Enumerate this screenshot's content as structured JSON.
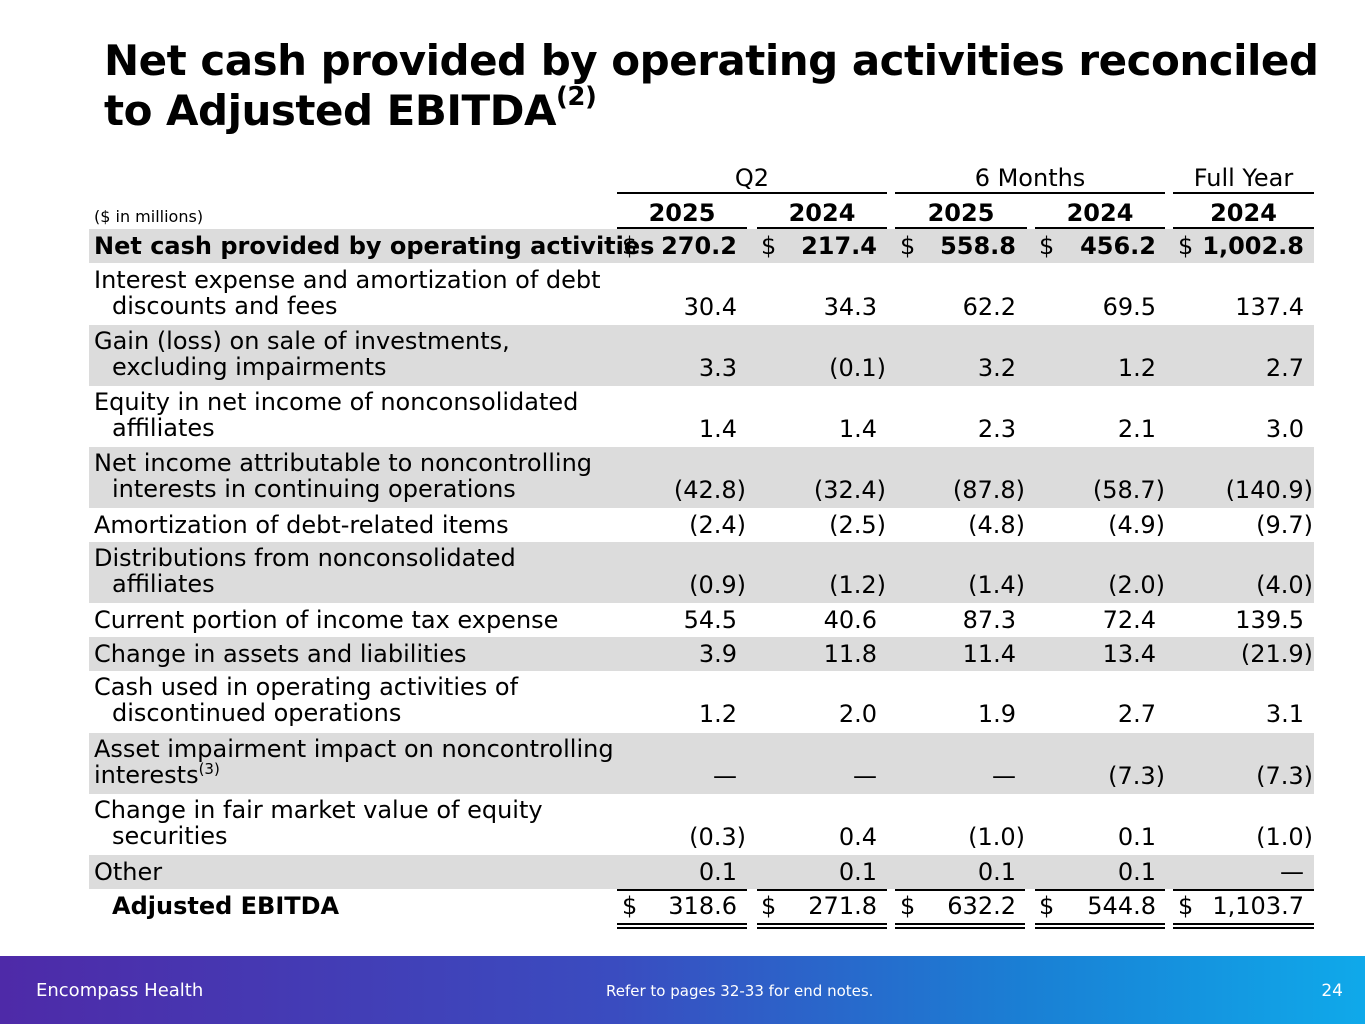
{
  "title": {
    "line1": "Net cash provided by operating activities reconciled",
    "line2": "to Adjusted EBITDA",
    "sup": "(2)"
  },
  "table": {
    "units": "($ in millions)",
    "groups": [
      "Q2",
      "6 Months",
      "Full Year"
    ],
    "years": [
      "2025",
      "2024",
      "2025",
      "2024",
      "2024"
    ],
    "currency_symbol": "$",
    "rows": [
      {
        "l1": "Net cash provided by operating activities",
        "l2": "",
        "values": [
          "270.2",
          "217.4",
          "558.8",
          "456.2",
          "1,002.8"
        ]
      },
      {
        "l1": "Interest expense and amortization of debt",
        "l2": "discounts and fees",
        "values": [
          "30.4",
          "34.3",
          "62.2",
          "69.5",
          "137.4"
        ]
      },
      {
        "l1": "Gain (loss) on sale of investments,",
        "l2": "excluding impairments",
        "values": [
          "3.3",
          "(0.1)",
          "3.2",
          "1.2",
          "2.7"
        ]
      },
      {
        "l1": "Equity in net income of nonconsolidated",
        "l2": "affiliates",
        "values": [
          "1.4",
          "1.4",
          "2.3",
          "2.1",
          "3.0"
        ]
      },
      {
        "l1": "Net income attributable to noncontrolling",
        "l2": "interests in continuing operations",
        "values": [
          "(42.8)",
          "(32.4)",
          "(87.8)",
          "(58.7)",
          "(140.9)"
        ]
      },
      {
        "l1": "Amortization of debt-related items",
        "l2": "",
        "values": [
          "(2.4)",
          "(2.5)",
          "(4.8)",
          "(4.9)",
          "(9.7)"
        ]
      },
      {
        "l1": "Distributions from nonconsolidated",
        "l2": "affiliates",
        "values": [
          "(0.9)",
          "(1.2)",
          "(1.4)",
          "(2.0)",
          "(4.0)"
        ]
      },
      {
        "l1": "Current portion of income tax expense",
        "l2": "",
        "values": [
          "54.5",
          "40.6",
          "87.3",
          "72.4",
          "139.5"
        ]
      },
      {
        "l1": "Change in assets and liabilities",
        "l2": "",
        "values": [
          "3.9",
          "11.8",
          "11.4",
          "13.4",
          "(21.9)"
        ]
      },
      {
        "l1": "Cash used in operating activities of",
        "l2": "discontinued operations",
        "values": [
          "1.2",
          "2.0",
          "1.9",
          "2.7",
          "3.1"
        ]
      },
      {
        "l1": "Asset impairment impact on noncontrolling",
        "l2": "interests",
        "sup": "(3)",
        "values": [
          "—",
          "—",
          "—",
          "(7.3)",
          "(7.3)"
        ]
      },
      {
        "l1": "Change in fair market value of equity",
        "l2": "securities",
        "values": [
          "(0.3)",
          "0.4",
          "(1.0)",
          "0.1",
          "(1.0)"
        ]
      },
      {
        "l1": "Other",
        "l2": "",
        "values": [
          "0.1",
          "0.1",
          "0.1",
          "0.1",
          "—"
        ]
      }
    ],
    "total": {
      "label": "Adjusted EBITDA",
      "values": [
        "318.6",
        "271.8",
        "632.2",
        "544.8",
        "1,103.7"
      ]
    }
  },
  "footer": {
    "brand": "Encompass Health",
    "note": "Refer to pages 32-33 for end notes.",
    "page": "24"
  }
}
